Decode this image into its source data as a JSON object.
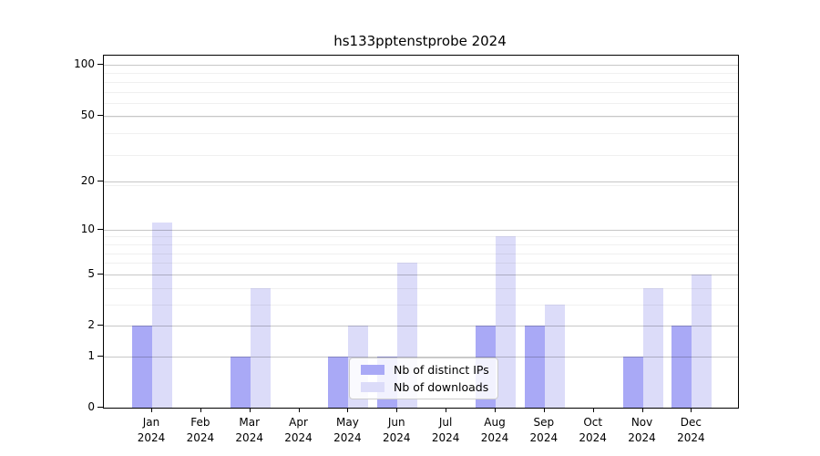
{
  "chart_data": {
    "type": "bar",
    "title": "hs133pptenstprobe 2024",
    "categories": [
      "Jan",
      "Feb",
      "Mar",
      "Apr",
      "May",
      "Jun",
      "Jul",
      "Aug",
      "Sep",
      "Oct",
      "Nov",
      "Dec"
    ],
    "year_label": "2024",
    "series": [
      {
        "name": "Nb of distinct IPs",
        "color": "#a9a9f6",
        "values": [
          2,
          0,
          1,
          0,
          1,
          1,
          0,
          2,
          2,
          0,
          1,
          2
        ]
      },
      {
        "name": "Nb of downloads",
        "color": "#dcdcf9",
        "values": [
          11,
          0,
          4,
          0,
          2,
          6,
          0,
          9,
          3,
          0,
          4,
          5
        ]
      }
    ],
    "y_axis": {
      "scale": "log1p",
      "ticks": [
        0,
        1,
        2,
        5,
        10,
        20,
        50,
        100
      ],
      "minor_gridlines": [
        3,
        4,
        6,
        7,
        8,
        9,
        19,
        29,
        39,
        49,
        59,
        69,
        79,
        89
      ],
      "ylim": [
        0,
        113
      ]
    },
    "grid": "both",
    "legend_position": "lower center"
  },
  "colors": {
    "bar_distinct_ips": "#a9a9f6",
    "bar_downloads": "#dcdcf9",
    "grid_major": "#c9c9c9",
    "grid_minor": "#efefef",
    "axis": "#000000",
    "background": "#ffffff"
  }
}
